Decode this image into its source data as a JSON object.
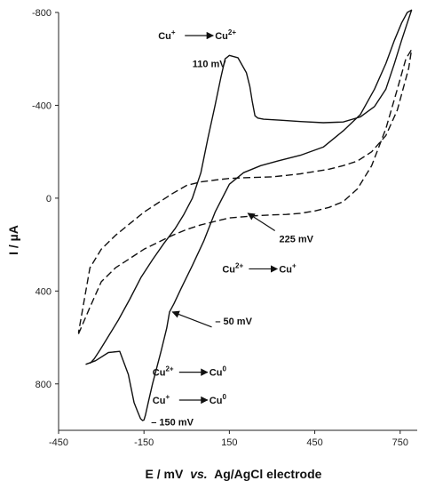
{
  "chart_data": {
    "type": "line",
    "title": "",
    "xlabel_main": "E / mV",
    "xlabel_italic": "vs.",
    "xlabel_tail": "Ag/AgCl electrode",
    "ylabel": "I / µA",
    "xlim": [
      -450,
      810
    ],
    "ylim": [
      -800,
      1000
    ],
    "y_inverted": true,
    "grid": false,
    "legend": "none",
    "x_ticks": [
      -450,
      -150,
      150,
      450,
      750
    ],
    "y_ticks": [
      -800,
      -400,
      0,
      400,
      800
    ],
    "series": [
      {
        "style": "solid",
        "color": "#111111",
        "x": [
          -355,
          -320,
          -275,
          -235,
          -205,
          -185,
          -172,
          -162,
          -155,
          -150,
          -145,
          -135,
          -120,
          -90,
          -70,
          -60,
          -45,
          -20,
          20,
          60,
          100,
          150,
          200,
          260,
          320,
          400,
          480,
          550,
          610,
          660,
          700,
          730,
          755,
          775,
          790,
          775,
          755,
          730,
          700,
          660,
          610,
          550,
          480,
          400,
          330,
          270,
          250,
          240,
          230,
          222,
          210,
          180,
          150,
          135,
          120,
          100,
          75,
          50,
          20,
          -10,
          -40,
          -80,
          -120,
          -160,
          -200,
          -240,
          -275,
          -305,
          -325,
          -340
        ],
        "y": [
          716,
          700,
          665,
          660,
          760,
          880,
          920,
          950,
          958,
          955,
          935,
          880,
          800,
          660,
          560,
          490,
          455,
          390,
          290,
          185,
          60,
          -60,
          -110,
          -140,
          -160,
          -185,
          -220,
          -290,
          -360,
          -470,
          -580,
          -680,
          -755,
          -800,
          -810,
          -755,
          -680,
          -580,
          -470,
          -395,
          -350,
          -328,
          -325,
          -330,
          -336,
          -340,
          -345,
          -355,
          -420,
          -480,
          -540,
          -605,
          -615,
          -600,
          -520,
          -400,
          -260,
          -110,
          0,
          70,
          130,
          195,
          265,
          340,
          435,
          525,
          595,
          655,
          692,
          712
        ]
      },
      {
        "style": "dashed",
        "color": "#111111",
        "x": [
          -380,
          -340,
          -300,
          -250,
          -200,
          -150,
          -100,
          -50,
          0,
          50,
          100,
          150,
          200,
          250,
          300,
          350,
          400,
          450,
          500,
          550,
          600,
          650,
          700,
          740,
          770,
          790,
          780,
          760,
          740,
          700,
          650,
          600,
          550,
          500,
          450,
          400,
          350,
          300,
          250,
          200,
          150,
          100,
          50,
          0,
          -50,
          -100,
          -150,
          -200,
          -250,
          -300,
          -340,
          -380
        ],
        "y": [
          585,
          470,
          360,
          300,
          260,
          220,
          190,
          160,
          135,
          115,
          100,
          85,
          80,
          75,
          72,
          70,
          65,
          55,
          40,
          15,
          -40,
          -140,
          -300,
          -470,
          -600,
          -640,
          -560,
          -470,
          -380,
          -270,
          -200,
          -160,
          -140,
          -125,
          -115,
          -105,
          -98,
          -92,
          -90,
          -88,
          -85,
          -78,
          -70,
          -55,
          -20,
          20,
          60,
          110,
          160,
          220,
          300,
          580
        ]
      }
    ],
    "annotations": [
      {
        "text": "Cu",
        "sup": "+",
        "arrow": true,
        "to": "Cu",
        "to_sup": "2+",
        "x": -100,
        "y": -685
      },
      {
        "text": "110 mV",
        "x": 20,
        "y": -565
      },
      {
        "text": "225 mV",
        "x": 325,
        "y": 190,
        "arrow_from_x": 310,
        "arrow_from_y": 140,
        "arrow_to_x": 215,
        "arrow_to_y": 65
      },
      {
        "text": "Cu",
        "sup": "2+",
        "arrow": true,
        "to": "Cu",
        "to_sup": "+",
        "x": 125,
        "y": 320
      },
      {
        "text": "– 50 mV",
        "x": 100,
        "y": 545,
        "arrow_from_x": 88,
        "arrow_from_y": 555,
        "arrow_to_x": -50,
        "arrow_to_y": 490
      },
      {
        "text": "Cu",
        "sup": "2+",
        "arrow": true,
        "to": "Cu",
        "to_sup": "0",
        "x": -120,
        "y": 765
      },
      {
        "text": "Cu",
        "sup": "+",
        "arrow": true,
        "to": "Cu",
        "to_sup": "0",
        "x": -120,
        "y": 885
      },
      {
        "text": "– 150 mV",
        "x": -125,
        "y": 978
      }
    ]
  }
}
